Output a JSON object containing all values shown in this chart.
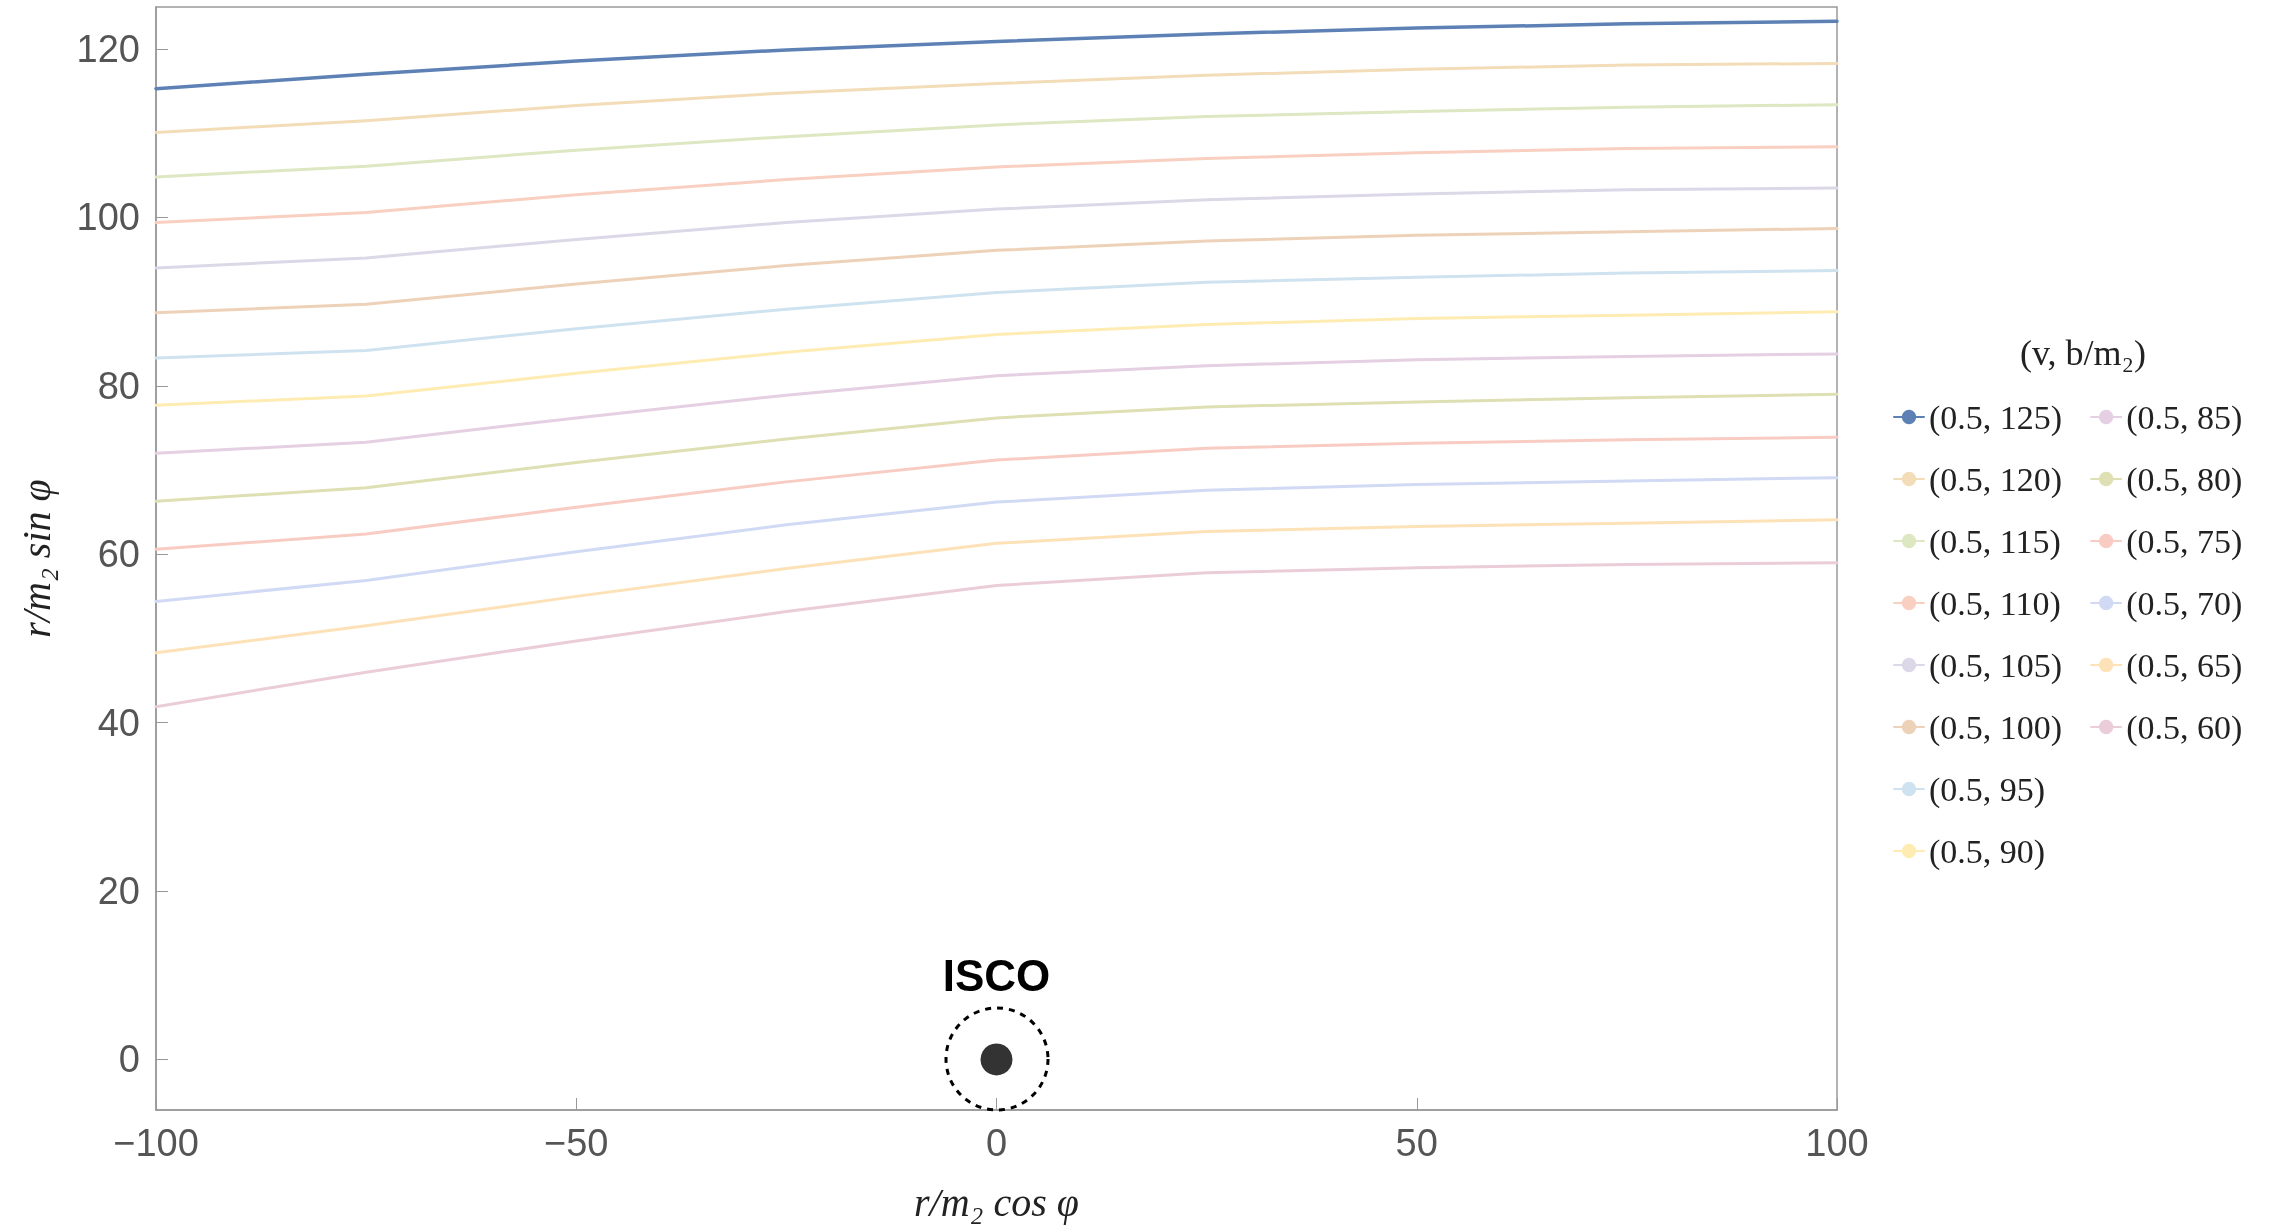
{
  "chart_data": {
    "type": "line",
    "xlabel": "r/m₂ cos φ",
    "ylabel": "r/m₂ sin φ",
    "legend_title": "(v, b/m₂)",
    "legend": "right",
    "line_style": "solid",
    "x": [
      -100,
      -75,
      -50,
      -25,
      0,
      25,
      50,
      75,
      100
    ],
    "xlim": [
      -100,
      100
    ],
    "xticks": [
      -100,
      -50,
      0,
      50,
      100
    ],
    "ylim": [
      -6,
      125
    ],
    "yticks": [
      0,
      20,
      40,
      60,
      80,
      100,
      120
    ],
    "annotations": [
      {
        "text": "ISCO",
        "x": 0,
        "y": 0
      }
    ],
    "series": [
      {
        "name": "(0.5, 125)",
        "color": "#5e81b5",
        "values": [
          115.3,
          117.0,
          118.6,
          119.9,
          120.9,
          121.8,
          122.5,
          123.0,
          123.3
        ]
      },
      {
        "name": "(0.5, 120)",
        "color": "#f3dcb8",
        "values": [
          110.1,
          111.5,
          113.3,
          114.8,
          115.9,
          116.9,
          117.6,
          118.1,
          118.3
        ]
      },
      {
        "name": "(0.5, 115)",
        "color": "#dde7c2",
        "values": [
          104.8,
          106.1,
          108.0,
          109.6,
          111.0,
          112.0,
          112.6,
          113.1,
          113.4
        ]
      },
      {
        "name": "(0.5, 110)",
        "color": "#f8cfc0",
        "values": [
          99.4,
          100.6,
          102.7,
          104.5,
          106.0,
          107.0,
          107.7,
          108.2,
          108.4
        ]
      },
      {
        "name": "(0.5, 105)",
        "color": "#dcd8e8",
        "values": [
          94.0,
          95.2,
          97.4,
          99.4,
          101.0,
          102.1,
          102.8,
          103.3,
          103.5
        ]
      },
      {
        "name": "(0.5, 100)",
        "color": "#edd2b9",
        "values": [
          88.7,
          89.7,
          92.1,
          94.3,
          96.1,
          97.2,
          97.9,
          98.3,
          98.7
        ]
      },
      {
        "name": "(0.5, 95)",
        "color": "#cfe2ef",
        "values": [
          83.3,
          84.2,
          86.8,
          89.1,
          91.1,
          92.3,
          92.9,
          93.4,
          93.7
        ]
      },
      {
        "name": "(0.5, 90)",
        "color": "#ffecb3",
        "values": [
          77.7,
          78.8,
          81.5,
          84.0,
          86.1,
          87.3,
          88.0,
          88.4,
          88.8
        ]
      },
      {
        "name": "(0.5, 85)",
        "color": "#e5cfe2",
        "values": [
          72.0,
          73.3,
          76.2,
          78.9,
          81.2,
          82.4,
          83.1,
          83.5,
          83.8
        ]
      },
      {
        "name": "(0.5, 80)",
        "color": "#dedfb3",
        "values": [
          66.3,
          67.9,
          70.9,
          73.7,
          76.2,
          77.5,
          78.1,
          78.6,
          79.0
        ]
      },
      {
        "name": "(0.5, 75)",
        "color": "#f8ccc3",
        "values": [
          60.6,
          62.4,
          65.6,
          68.6,
          71.2,
          72.6,
          73.2,
          73.6,
          73.9
        ]
      },
      {
        "name": "(0.5, 70)",
        "color": "#d1daf4",
        "values": [
          54.4,
          56.9,
          60.3,
          63.5,
          66.2,
          67.6,
          68.3,
          68.7,
          69.1
        ]
      },
      {
        "name": "(0.5, 65)",
        "color": "#fde2b8",
        "values": [
          48.3,
          51.5,
          55.0,
          58.3,
          61.3,
          62.7,
          63.3,
          63.7,
          64.1
        ]
      },
      {
        "name": "(0.5, 60)",
        "color": "#ebcdd9",
        "values": [
          41.9,
          46.0,
          49.7,
          53.2,
          56.3,
          57.8,
          58.4,
          58.8,
          59.0
        ]
      },
      {
        "type": "scatter",
        "color": "#000000",
        "x": [
          0
        ],
        "values": [
          0
        ]
      }
    ]
  }
}
